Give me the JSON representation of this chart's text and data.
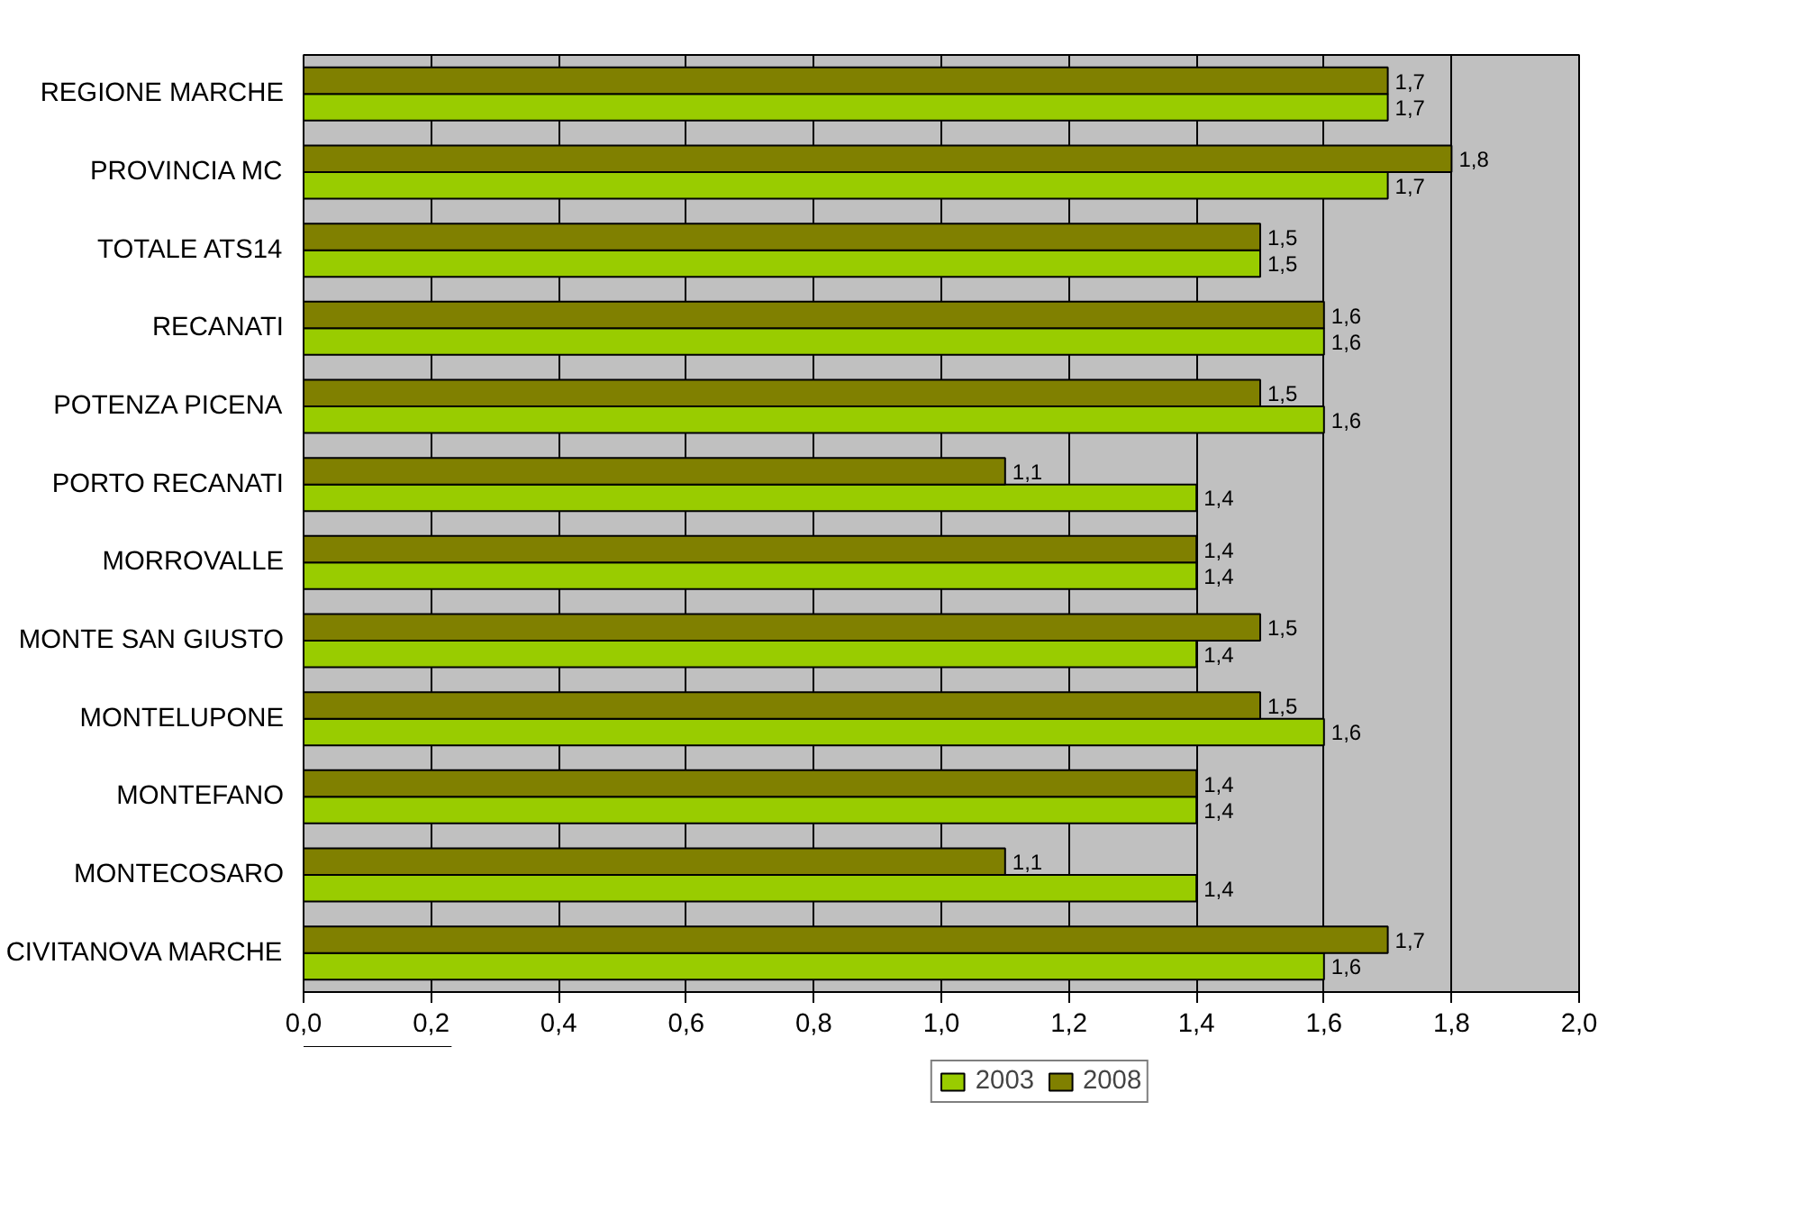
{
  "chart_data": {
    "type": "bar",
    "orientation": "horizontal",
    "categories": [
      "REGIONE MARCHE",
      "PROVINCIA MC",
      "TOTALE ATS14",
      "RECANATI",
      "POTENZA PICENA",
      "PORTO RECANATI",
      "MORROVALLE",
      "MONTE SAN GIUSTO",
      "MONTELUPONE",
      "MONTEFANO",
      "MONTECOSARO",
      "CIVITANOVA MARCHE"
    ],
    "series": [
      {
        "name": "2003",
        "color": "#99cc00",
        "values": [
          1.7,
          1.7,
          1.5,
          1.6,
          1.6,
          1.4,
          1.4,
          1.4,
          1.6,
          1.4,
          1.4,
          1.6
        ],
        "value_labels": [
          "1,7",
          "1,7",
          "1,5",
          "1,6",
          "1,6",
          "1,4",
          "1,4",
          "1,4",
          "1,6",
          "1,4",
          "1,4",
          "1,6"
        ]
      },
      {
        "name": "2008",
        "color": "#808000",
        "values": [
          1.7,
          1.8,
          1.5,
          1.6,
          1.5,
          1.1,
          1.4,
          1.5,
          1.5,
          1.4,
          1.1,
          1.7
        ],
        "value_labels": [
          "1,7",
          "1,8",
          "1,5",
          "1,6",
          "1,5",
          "1,1",
          "1,4",
          "1,5",
          "1,5",
          "1,4",
          "1,1",
          "1,7"
        ]
      }
    ],
    "xlim": [
      0,
      2
    ],
    "xticks": [
      {
        "value": 0,
        "label": "0,0"
      },
      {
        "value": 0.2,
        "label": "0,2"
      },
      {
        "value": 0.4,
        "label": "0,4"
      },
      {
        "value": 0.6,
        "label": "0,6"
      },
      {
        "value": 0.8,
        "label": "0,8"
      },
      {
        "value": 1.0,
        "label": "1,0"
      },
      {
        "value": 1.2,
        "label": "1,2"
      },
      {
        "value": 1.4,
        "label": "1,4"
      },
      {
        "value": 1.6,
        "label": "1,6"
      },
      {
        "value": 1.8,
        "label": "1,8"
      },
      {
        "value": 2.0,
        "label": "2,0"
      }
    ],
    "grid": "x",
    "legend": "bottom"
  }
}
